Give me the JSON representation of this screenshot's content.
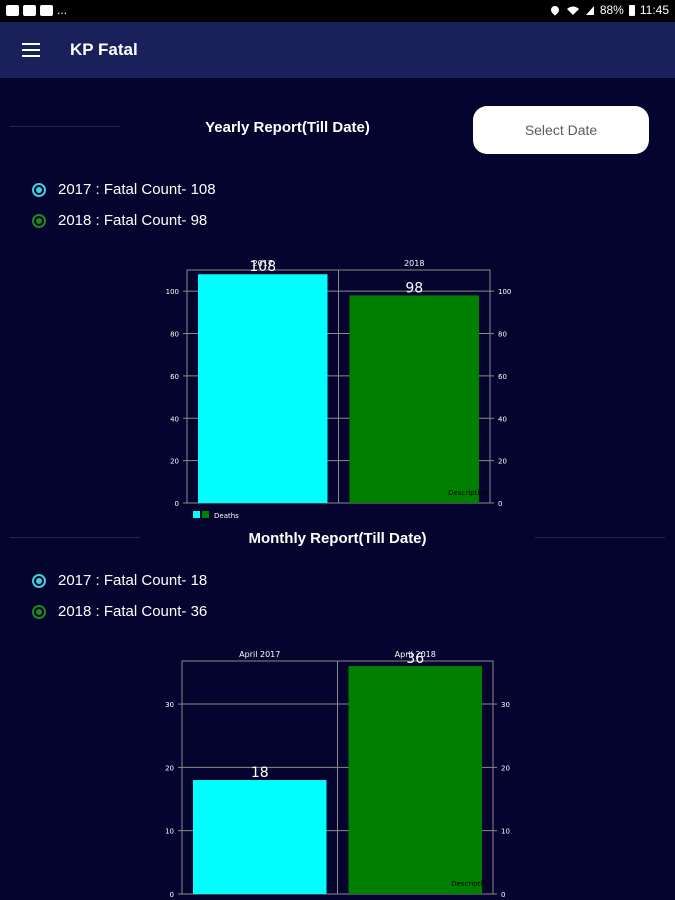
{
  "status_bar": {
    "left_text": "...",
    "battery": "88%",
    "time": "11:45"
  },
  "app_bar": {
    "title": "KP Fatal",
    "menu_icon": "hamburger-menu-icon"
  },
  "yearly": {
    "title": "Yearly Report(Till Date)",
    "select_date_label": "Select Date",
    "legend": [
      {
        "label": "2017 : Fatal Count- 108",
        "color": "#3fd0e0"
      },
      {
        "label": "2018 : Fatal Count- 98",
        "color": "#1e8a1e"
      }
    ]
  },
  "monthly": {
    "title": "Monthly Report(Till Date)",
    "legend": [
      {
        "label": "2017 : Fatal Count- 18",
        "color": "#3fd0e0"
      },
      {
        "label": "2018 : Fatal Count- 36",
        "color": "#1e8a1e"
      }
    ]
  },
  "chart_data": [
    {
      "type": "bar",
      "categories": [
        "2017",
        "2018"
      ],
      "values": [
        108,
        98
      ],
      "value_labels": [
        "108",
        "98"
      ],
      "colors": [
        "#00ffff",
        "#008000"
      ],
      "ylim": [
        0,
        110
      ],
      "yticks": [
        "0",
        "20",
        "40",
        "60",
        "80",
        "100"
      ],
      "legend_label": "Deaths",
      "description": "Description",
      "grid": true
    },
    {
      "type": "bar",
      "categories": [
        "April 2017",
        "April 2018"
      ],
      "values": [
        18,
        36
      ],
      "value_labels": [
        "18",
        "36"
      ],
      "colors": [
        "#00ffff",
        "#008000"
      ],
      "ylim": [
        0,
        36.8
      ],
      "yticks": [
        "0",
        "10",
        "20",
        "30"
      ],
      "description": "Description",
      "grid": true
    }
  ]
}
